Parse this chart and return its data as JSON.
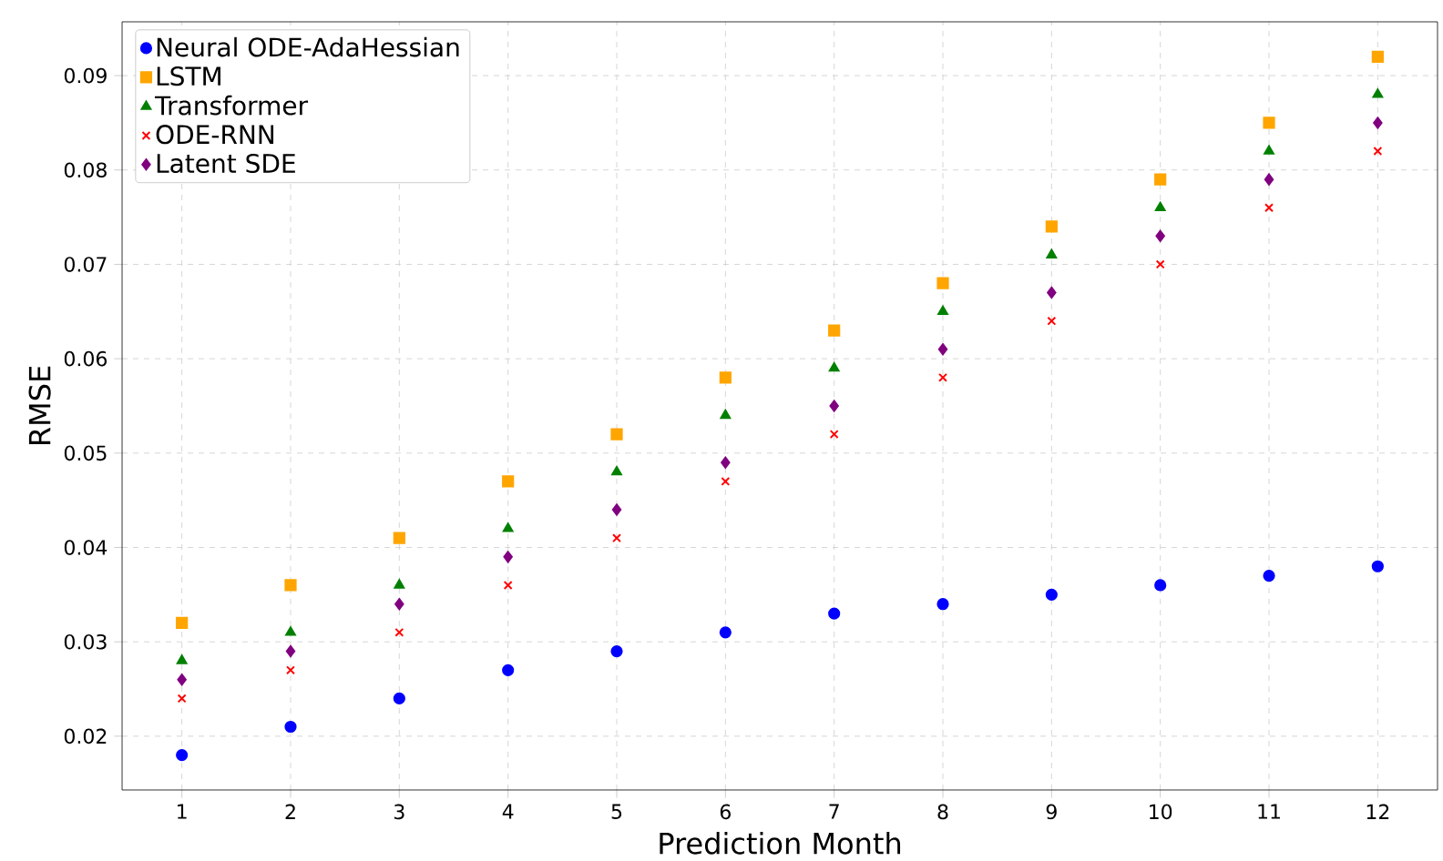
{
  "chart_data": {
    "type": "scatter",
    "xlabel": "Prediction Month",
    "ylabel": "RMSE",
    "x": [
      1,
      2,
      3,
      4,
      5,
      6,
      7,
      8,
      9,
      10,
      11,
      12
    ],
    "series": [
      {
        "name": "Neural ODE-AdaHessian",
        "color": "#0000ff",
        "marker": "circle",
        "values": [
          0.018,
          0.021,
          0.024,
          0.027,
          0.029,
          0.031,
          0.033,
          0.034,
          0.035,
          0.036,
          0.037,
          0.038
        ]
      },
      {
        "name": "LSTM",
        "color": "#ffa500",
        "marker": "square",
        "values": [
          0.032,
          0.036,
          0.041,
          0.047,
          0.052,
          0.058,
          0.063,
          0.068,
          0.074,
          0.079,
          0.085,
          0.092
        ]
      },
      {
        "name": "Transformer",
        "color": "#008000",
        "marker": "triangle",
        "values": [
          0.028,
          0.031,
          0.036,
          0.042,
          0.048,
          0.054,
          0.059,
          0.065,
          0.071,
          0.076,
          0.082,
          0.088
        ]
      },
      {
        "name": "ODE-RNN",
        "color": "#ff0000",
        "marker": "cross",
        "values": [
          0.024,
          0.027,
          0.031,
          0.036,
          0.041,
          0.047,
          0.052,
          0.058,
          0.064,
          0.07,
          0.076,
          0.082
        ]
      },
      {
        "name": "Latent SDE",
        "color": "#800080",
        "marker": "diamond",
        "values": [
          0.026,
          0.029,
          0.034,
          0.039,
          0.044,
          0.049,
          0.055,
          0.061,
          0.067,
          0.073,
          0.079,
          0.085
        ]
      }
    ],
    "xlim": [
      0.45,
      12.55
    ],
    "ylim": [
      0.0143,
      0.0957
    ],
    "xticks": [
      1,
      2,
      3,
      4,
      5,
      6,
      7,
      8,
      9,
      10,
      11,
      12
    ],
    "yticks": [
      0.02,
      0.03,
      0.04,
      0.05,
      0.06,
      0.07,
      0.08,
      0.09
    ],
    "grid": true,
    "legend": "top left"
  }
}
